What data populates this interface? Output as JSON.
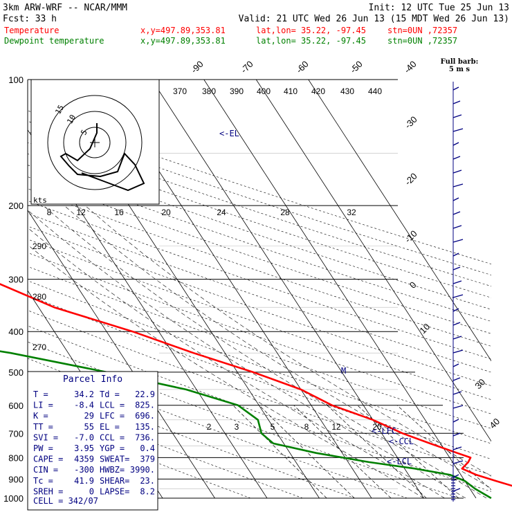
{
  "header": {
    "model": "3km ARW-WRF -- NCAR/MMM",
    "init": "Init: 12 UTC Tue 25 Jun 13",
    "fcst_label": "Fcst:",
    "fcst_value": "33 h",
    "valid": "Valid: 21 UTC Wed 26 Jun 13 (15 MDT Wed 26 Jun 13)"
  },
  "legend": [
    {
      "name": "Temperature",
      "color": "#ff0000",
      "xy": "x,y=497.89,353.81",
      "latlon": "lat,lon= 35.22, -97.45",
      "stn": "stn=0UN ,72357"
    },
    {
      "name": "Dewpoint temperature",
      "color": "#008000",
      "xy": "x,y=497.89,353.81",
      "latlon": "lat,lon= 35.22, -97.45",
      "stn": "stn=0UN ,72357"
    }
  ],
  "colors": {
    "temperature": "#ff0000",
    "dewpoint": "#008000",
    "wind": "#000080",
    "text_blue": "#000080",
    "header_red": "#ff0000"
  },
  "barb_legend": {
    "line1": "Full barb:",
    "line2": "5 m s"
  },
  "pressure_labels": [
    "100",
    "200",
    "300",
    "400",
    "500",
    "600",
    "700",
    "800",
    "900",
    "1000"
  ],
  "skewt_temp_labels": [
    "-90",
    "-70",
    "-60",
    "-50",
    "-40",
    "-30",
    "-20",
    "-10",
    "0",
    "10",
    "30",
    "40"
  ],
  "theta_labels": [
    "370",
    "380",
    "390",
    "400",
    "410",
    "420",
    "430",
    "440"
  ],
  "theta_side_labels": [
    "290",
    "280",
    "270"
  ],
  "mixing_ratio_labels": [
    "2",
    "3",
    "5",
    "8",
    "12",
    "20"
  ],
  "hodograph": {
    "kts_label": "kts",
    "ring_labels": [
      "5",
      "10",
      "15"
    ],
    "speed_labels": [
      "8",
      "12",
      "16",
      "20",
      "24",
      "28",
      "32"
    ]
  },
  "levels_marks": {
    "el": "<-EL",
    "lfc": "<-LFC",
    "ccl": "<-CCL",
    "lcl": "<-LCL",
    "m": "M"
  },
  "parcel_info": {
    "title": "Parcel Info",
    "rows": [
      [
        "T  =",
        "34.2",
        "Td =",
        "22.9"
      ],
      [
        "LI =",
        "-8.4",
        "LCL =",
        "825."
      ],
      [
        "K  =",
        "29",
        "LFC =",
        "696."
      ],
      [
        "TT =",
        "55",
        "EL  =",
        "135."
      ],
      [
        "SVI =",
        "-7.0",
        "CCL =",
        "736."
      ],
      [
        "PW =",
        "3.95",
        "YGP =",
        "0.4"
      ],
      [
        "CAPE =",
        "4359",
        "SWEAT=",
        "379"
      ],
      [
        "CIN =",
        "-300",
        "HWBZ=",
        "3990."
      ],
      [
        "Tc =",
        "41.9",
        "SHEAR=",
        "23."
      ],
      [
        "SREH =",
        "0",
        "LAPSE=",
        "8.2"
      ]
    ],
    "cell": "CELL = 342/07"
  },
  "chart_data": {
    "type": "line",
    "title": "",
    "xlabel": "",
    "ylabel": "",
    "y_scale": "log-pressure (hPa)",
    "ylim": [
      1000,
      100
    ],
    "series": [
      {
        "name": "Temperature",
        "pressure": [
          100,
          120,
          140,
          160,
          180,
          200,
          230,
          260,
          300,
          350,
          400,
          450,
          500,
          550,
          600,
          650,
          700,
          740,
          780,
          800,
          820,
          850,
          880,
          910,
          950,
          1000
        ],
        "values": [
          -62,
          -63,
          -64,
          -66,
          -67,
          -64,
          -60,
          -55,
          -46,
          -37,
          -25,
          -16,
          -7,
          0,
          4,
          10,
          14,
          18,
          22,
          24,
          23,
          21,
          23,
          26,
          30,
          34.2
        ]
      },
      {
        "name": "Dewpoint temperature",
        "pressure": [
          100,
          120,
          140,
          160,
          180,
          200,
          230,
          260,
          300,
          340,
          370,
          390,
          420,
          450,
          500,
          550,
          600,
          650,
          700,
          740,
          780,
          820,
          850,
          880,
          910,
          950,
          1000
        ],
        "values": [
          -89,
          -87,
          -87,
          -86,
          -83,
          -77,
          -74,
          -74,
          -75,
          -76,
          -76,
          -74,
          -64,
          -51,
          -35,
          -22,
          -14,
          -12,
          -13,
          -12,
          -5,
          4,
          12,
          18,
          20,
          21,
          22.9
        ]
      }
    ]
  }
}
